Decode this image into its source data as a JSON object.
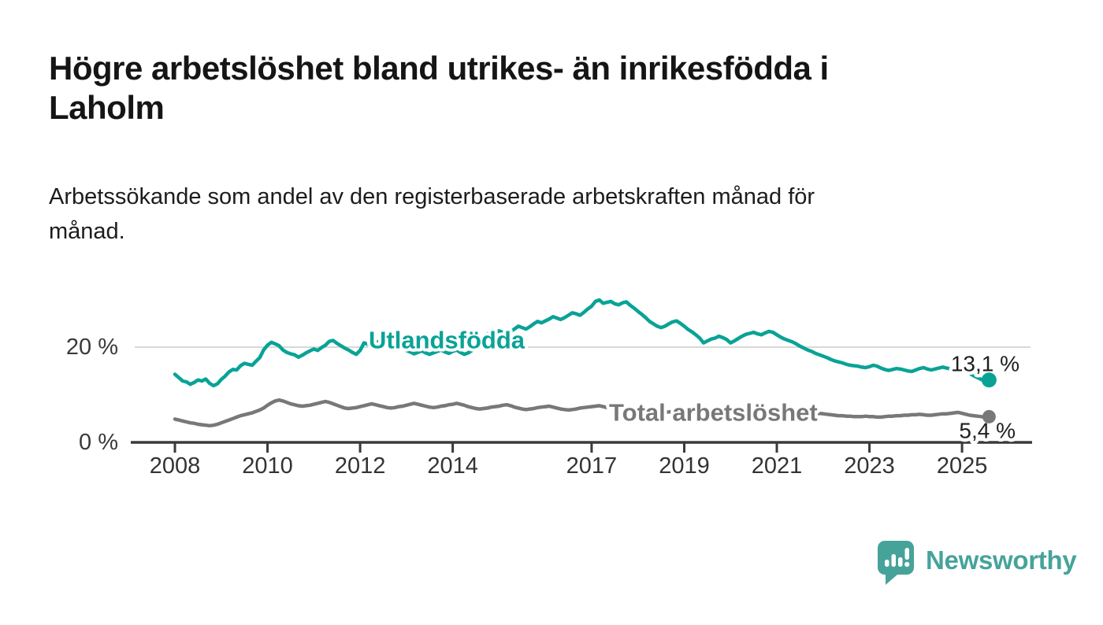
{
  "header": {
    "title_lines": [
      "Högre arbetslöshet bland utrikes- än inrikesfödda i",
      "Laholm"
    ],
    "subtitle_lines": [
      "Arbetssökande som andel av den registerbaserade arbetskraften månad för",
      "månad."
    ]
  },
  "chart_data": {
    "type": "line",
    "title": "Högre arbetslöshet bland utrikes- än inrikesfödda i Laholm",
    "subtitle": "Arbetssökande som andel av den registerbaserade arbetskraften månad för månad.",
    "unit": "%",
    "x_start": 2008.0,
    "points_per_year": 12,
    "x_ticks": [
      {
        "year": 2008,
        "label": "2008"
      },
      {
        "year": 2010,
        "label": "2010"
      },
      {
        "year": 2012,
        "label": "2012"
      },
      {
        "year": 2014,
        "label": "2014"
      },
      {
        "year": 2017,
        "label": "2017"
      },
      {
        "year": 2019,
        "label": "2019"
      },
      {
        "year": 2021,
        "label": "2021"
      },
      {
        "year": 2023,
        "label": "2023"
      },
      {
        "year": 2025,
        "label": "2025"
      }
    ],
    "y_ticks": [
      {
        "value": 20,
        "label": "20 %",
        "grid": true
      },
      {
        "value": 0,
        "label": "0 %",
        "grid": false
      }
    ],
    "ylim": [
      0,
      31
    ],
    "legend_position": "inline-labels",
    "grid": "single-horizontal-gridline-at-20",
    "series": [
      {
        "name": "Utlandsfödda",
        "color": "#09a396",
        "end_label": "13,1 %",
        "end_value": 13.1,
        "values": [
          14.3,
          13.6,
          12.9,
          12.7,
          12.2,
          12.6,
          13.1,
          12.9,
          13.3,
          12.4,
          11.9,
          12.3,
          13.2,
          13.9,
          14.8,
          15.3,
          15.2,
          16.1,
          16.6,
          16.4,
          16.2,
          17.0,
          17.8,
          19.4,
          20.4,
          21.0,
          20.7,
          20.3,
          19.4,
          18.9,
          18.6,
          18.4,
          17.9,
          18.3,
          18.8,
          19.2,
          19.6,
          19.3,
          19.9,
          20.4,
          21.2,
          21.4,
          20.8,
          20.3,
          19.8,
          19.4,
          18.9,
          18.5,
          19.3,
          20.9,
          20.6,
          21.1,
          21.3,
          20.8,
          20.4,
          20.1,
          20.5,
          20.8,
          20.2,
          19.7,
          19.3,
          19.0,
          18.6,
          18.9,
          19.2,
          18.8,
          18.5,
          18.8,
          19.1,
          19.4,
          19.0,
          18.7,
          19.1,
          19.4,
          18.9,
          18.5,
          18.8,
          19.3,
          20.1,
          21.0,
          22.0,
          22.8,
          23.2,
          23.0,
          23.4,
          23.1,
          22.8,
          23.3,
          23.8,
          24.4,
          24.1,
          23.8,
          24.3,
          24.9,
          25.4,
          25.1,
          25.5,
          25.9,
          26.4,
          26.1,
          25.8,
          26.2,
          26.7,
          27.2,
          27.0,
          26.7,
          27.3,
          28.0,
          28.6,
          29.6,
          29.9,
          29.2,
          29.4,
          29.6,
          29.1,
          28.9,
          29.3,
          29.5,
          28.8,
          28.2,
          27.5,
          26.9,
          26.2,
          25.4,
          24.9,
          24.4,
          24.1,
          24.4,
          24.9,
          25.3,
          25.5,
          25.0,
          24.4,
          23.7,
          23.2,
          22.6,
          21.9,
          20.9,
          21.3,
          21.7,
          21.9,
          22.3,
          22.0,
          21.6,
          20.9,
          21.3,
          21.8,
          22.3,
          22.7,
          22.9,
          23.1,
          22.8,
          22.6,
          23.0,
          23.3,
          23.1,
          22.6,
          22.1,
          21.7,
          21.4,
          21.1,
          20.7,
          20.2,
          19.8,
          19.4,
          19.1,
          18.7,
          18.4,
          18.1,
          17.8,
          17.4,
          17.1,
          16.9,
          16.7,
          16.4,
          16.2,
          16.1,
          16.0,
          15.8,
          15.7,
          15.9,
          16.2,
          16.0,
          15.6,
          15.3,
          15.1,
          15.3,
          15.5,
          15.4,
          15.2,
          15.0,
          14.9,
          15.2,
          15.5,
          15.7,
          15.4,
          15.2,
          15.4,
          15.6,
          15.8,
          15.6,
          15.4,
          15.7,
          16.0,
          15.8,
          15.3,
          14.5,
          14.0,
          13.6,
          13.2,
          12.8,
          13.1
        ]
      },
      {
        "name": "Total arbetslöshet",
        "color": "#787878",
        "end_label": "5,4 %",
        "end_value": 5.4,
        "values": [
          4.9,
          4.7,
          4.5,
          4.3,
          4.1,
          4.0,
          3.8,
          3.7,
          3.6,
          3.5,
          3.6,
          3.8,
          4.1,
          4.4,
          4.7,
          5.0,
          5.3,
          5.6,
          5.8,
          6.0,
          6.2,
          6.5,
          6.8,
          7.2,
          7.8,
          8.3,
          8.7,
          8.9,
          8.7,
          8.4,
          8.1,
          7.9,
          7.7,
          7.6,
          7.7,
          7.8,
          8.0,
          8.2,
          8.4,
          8.6,
          8.4,
          8.1,
          7.8,
          7.5,
          7.2,
          7.1,
          7.2,
          7.3,
          7.5,
          7.7,
          7.9,
          8.1,
          7.9,
          7.7,
          7.5,
          7.3,
          7.2,
          7.3,
          7.5,
          7.6,
          7.8,
          8.0,
          8.2,
          8.0,
          7.8,
          7.6,
          7.4,
          7.3,
          7.4,
          7.6,
          7.7,
          7.9,
          8.0,
          8.2,
          8.0,
          7.8,
          7.5,
          7.3,
          7.1,
          7.0,
          7.1,
          7.2,
          7.4,
          7.5,
          7.6,
          7.8,
          7.9,
          7.7,
          7.4,
          7.2,
          7.0,
          6.9,
          7.0,
          7.1,
          7.3,
          7.4,
          7.5,
          7.6,
          7.4,
          7.2,
          7.0,
          6.9,
          6.8,
          6.9,
          7.0,
          7.2,
          7.3,
          7.4,
          7.5,
          7.6,
          7.7,
          7.5,
          7.3,
          7.2,
          7.0,
          7.1,
          7.2,
          7.3,
          7.2,
          7.1,
          7.0,
          6.9,
          6.7,
          6.6,
          6.5,
          6.4,
          6.3,
          6.3,
          6.4,
          6.5,
          6.4,
          6.3,
          6.2,
          6.1,
          6.0,
          5.9,
          5.9,
          6.0,
          6.1,
          6.2,
          6.2,
          6.1,
          6.2,
          6.3,
          6.4,
          6.5,
          6.7,
          7.0,
          7.2,
          7.3,
          7.2,
          7.1,
          7.0,
          6.9,
          6.9,
          6.8,
          6.7,
          6.6,
          6.5,
          6.4,
          6.3,
          6.2,
          6.2,
          6.1,
          6.1,
          6.0,
          6.0,
          6.1,
          6.0,
          5.9,
          5.8,
          5.7,
          5.6,
          5.6,
          5.5,
          5.5,
          5.4,
          5.4,
          5.4,
          5.5,
          5.4,
          5.4,
          5.3,
          5.3,
          5.4,
          5.5,
          5.5,
          5.6,
          5.6,
          5.7,
          5.7,
          5.8,
          5.8,
          5.9,
          5.8,
          5.7,
          5.7,
          5.8,
          5.9,
          6.0,
          6.0,
          6.1,
          6.2,
          6.3,
          6.1,
          5.9,
          5.7,
          5.6,
          5.5,
          5.4,
          5.3,
          5.4
        ]
      }
    ]
  },
  "footer": {
    "brand": "Newsworthy",
    "logo_icon": "speech-bubble-bar-chart",
    "brand_color": "#46a39a"
  },
  "colors": {
    "accent_teal": "#09a396",
    "series_gray": "#787878",
    "gridline": "#d9d9d9",
    "axis": "#3a3a3a",
    "text": "#1a1a1a"
  }
}
